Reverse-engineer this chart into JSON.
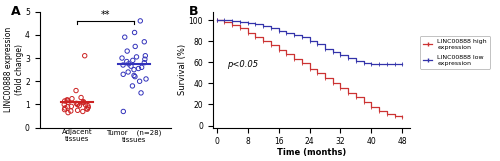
{
  "panel_a": {
    "title": "A",
    "ylabel": "LINC00888 expression\n(fold change)",
    "xlabel_left": "Adjacent\ntissues",
    "xlabel_right": "Tumor    (n=28)\ntissues",
    "ylim": [
      0,
      5
    ],
    "yticks": [
      0,
      1,
      2,
      3,
      4,
      5
    ],
    "adjacent_dots": [
      0.65,
      0.7,
      0.72,
      0.75,
      0.78,
      0.8,
      0.82,
      0.85,
      0.88,
      0.9,
      0.92,
      0.95,
      0.95,
      0.98,
      1.0,
      1.0,
      1.02,
      1.05,
      1.08,
      1.1,
      1.12,
      1.15,
      1.18,
      1.2,
      1.25,
      1.3,
      1.6,
      3.1
    ],
    "adjacent_mean": 1.1,
    "adjacent_color": "#cc2222",
    "tumor_dots": [
      0.7,
      1.5,
      1.8,
      2.0,
      2.1,
      2.2,
      2.25,
      2.3,
      2.4,
      2.5,
      2.55,
      2.6,
      2.65,
      2.7,
      2.75,
      2.8,
      2.85,
      2.9,
      2.95,
      3.0,
      3.05,
      3.1,
      3.3,
      3.5,
      3.7,
      3.9,
      4.1,
      4.6
    ],
    "tumor_mean": 2.75,
    "tumor_color": "#3333bb",
    "significance_text": "**",
    "sig_line_y": 4.6,
    "bracket_drop": 0.12
  },
  "panel_b": {
    "title": "B",
    "ylabel": "Survival (%)",
    "xlabel": "Time (months)",
    "xticks": [
      0,
      8,
      16,
      24,
      32,
      40,
      48
    ],
    "yticks": [
      0,
      20,
      40,
      60,
      80,
      100
    ],
    "ylim": [
      -2,
      108
    ],
    "xlim": [
      -1,
      50
    ],
    "pvalue_text": "p<0.05",
    "high_color": "#cc3333",
    "low_color": "#3333aa",
    "high_label": "LINC00888 high\nexpression",
    "low_label": "LINC00888 low\nexpression",
    "high_times": [
      0,
      2,
      4,
      6,
      8,
      10,
      12,
      14,
      16,
      18,
      20,
      22,
      24,
      26,
      28,
      30,
      32,
      34,
      36,
      38,
      40,
      42,
      44,
      46,
      48
    ],
    "high_survival": [
      100,
      98,
      95,
      92,
      88,
      84,
      80,
      76,
      72,
      68,
      63,
      59,
      54,
      50,
      45,
      40,
      36,
      31,
      27,
      22,
      18,
      14,
      11,
      9,
      8
    ],
    "low_times": [
      0,
      2,
      4,
      6,
      8,
      10,
      12,
      14,
      16,
      18,
      20,
      22,
      24,
      26,
      28,
      30,
      32,
      34,
      36,
      38,
      40,
      42,
      44,
      46,
      48
    ],
    "low_survival": [
      100,
      100,
      99,
      98,
      97,
      96,
      94,
      92,
      90,
      88,
      86,
      84,
      80,
      77,
      73,
      70,
      67,
      64,
      61,
      59,
      58,
      58,
      58,
      58,
      58
    ],
    "legend_box": true
  }
}
